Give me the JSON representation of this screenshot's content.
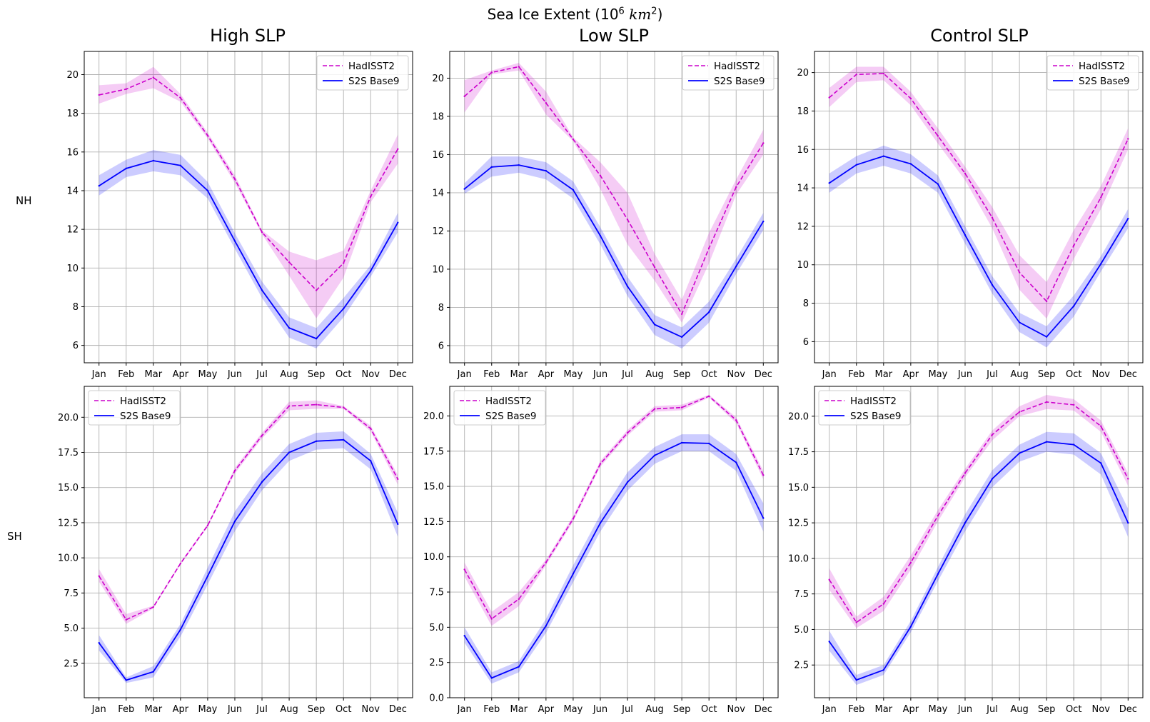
{
  "figure": {
    "title_prefix": "Sea Ice Extent (10",
    "title_exp": "6",
    "title_unit": "km",
    "title_unit_exp": "2",
    "title_suffix": ")",
    "col_titles": [
      "High SLP",
      "Low SLP",
      "Control SLP"
    ],
    "row_labels": [
      "NH",
      "SH"
    ]
  },
  "colors": {
    "hadisst": "#cc00cc",
    "s2s": "#0000ff",
    "grid": "#b0b0b0"
  },
  "chart_data": [
    {
      "type": "line",
      "panel": "High SLP / NH",
      "title": "High SLP",
      "row": "NH",
      "categories": [
        "Jan",
        "Feb",
        "Mar",
        "Apr",
        "May",
        "Jun",
        "Jul",
        "Aug",
        "Sep",
        "Oct",
        "Nov",
        "Dec"
      ],
      "ylim": [
        5.1,
        21.2
      ],
      "yticks": [
        6,
        8,
        10,
        12,
        14,
        16,
        18,
        20
      ],
      "ytick_labels": [
        "6",
        "8",
        "10",
        "12",
        "14",
        "16",
        "18",
        "20"
      ],
      "grid": true,
      "legend": "upper right",
      "series": [
        {
          "name": "HadISST2",
          "style": "dashed",
          "values": [
            18.95,
            19.25,
            19.85,
            18.8,
            16.85,
            14.6,
            11.85,
            10.3,
            8.85,
            10.25,
            13.7,
            16.15
          ],
          "lower": [
            18.5,
            19.0,
            19.3,
            18.6,
            16.7,
            14.4,
            11.75,
            9.6,
            7.4,
            9.5,
            13.4,
            15.4
          ],
          "upper": [
            19.45,
            19.55,
            20.4,
            19.0,
            17.0,
            14.8,
            11.95,
            10.85,
            10.4,
            10.9,
            14.0,
            16.9
          ]
        },
        {
          "name": "S2S Base9",
          "style": "solid",
          "values": [
            14.25,
            15.15,
            15.55,
            15.3,
            14.0,
            11.4,
            8.85,
            6.9,
            6.35,
            7.9,
            9.85,
            12.35
          ],
          "lower": [
            13.75,
            14.7,
            15.0,
            14.8,
            13.6,
            11.0,
            8.45,
            6.4,
            5.85,
            7.45,
            9.55,
            11.85
          ],
          "upper": [
            14.8,
            15.6,
            16.1,
            15.85,
            14.45,
            11.8,
            9.3,
            7.45,
            6.9,
            8.45,
            10.15,
            12.85
          ]
        }
      ]
    },
    {
      "type": "line",
      "panel": "Low SLP / NH",
      "title": "Low SLP",
      "row": "NH",
      "categories": [
        "Jan",
        "Feb",
        "Mar",
        "Apr",
        "May",
        "Jun",
        "Jul",
        "Aug",
        "Sep",
        "Oct",
        "Nov",
        "Dec"
      ],
      "ylim": [
        5.1,
        21.4
      ],
      "yticks": [
        6,
        8,
        10,
        12,
        14,
        16,
        18,
        20
      ],
      "ytick_labels": [
        "6",
        "8",
        "10",
        "12",
        "14",
        "16",
        "18",
        "20"
      ],
      "grid": true,
      "legend": "upper right",
      "series": [
        {
          "name": "HadISST2",
          "style": "dashed",
          "values": [
            19.05,
            20.3,
            20.6,
            18.7,
            16.8,
            14.9,
            12.6,
            10.1,
            7.65,
            11.1,
            14.3,
            16.6
          ],
          "lower": [
            18.2,
            20.2,
            20.4,
            18.1,
            16.7,
            14.2,
            11.3,
            9.4,
            7.2,
            10.3,
            13.9,
            16.0
          ],
          "upper": [
            19.9,
            20.4,
            20.8,
            19.3,
            16.9,
            15.6,
            14.0,
            10.8,
            8.4,
            11.9,
            14.7,
            17.3
          ]
        },
        {
          "name": "S2S Base9",
          "style": "solid",
          "values": [
            14.2,
            15.35,
            15.45,
            15.15,
            14.15,
            11.75,
            9.1,
            7.1,
            6.45,
            7.75,
            10.15,
            12.5
          ],
          "lower": [
            13.95,
            14.85,
            15.05,
            14.7,
            13.7,
            11.3,
            8.6,
            6.55,
            5.85,
            7.2,
            9.75,
            12.05
          ],
          "upper": [
            14.5,
            15.9,
            15.9,
            15.6,
            14.6,
            12.2,
            9.6,
            7.6,
            6.95,
            8.3,
            10.55,
            12.95
          ]
        }
      ]
    },
    {
      "type": "line",
      "panel": "Control SLP / NH",
      "title": "Control SLP",
      "row": "NH",
      "categories": [
        "Jan",
        "Feb",
        "Mar",
        "Apr",
        "May",
        "Jun",
        "Jul",
        "Aug",
        "Sep",
        "Oct",
        "Nov",
        "Dec"
      ],
      "ylim": [
        4.9,
        21.1
      ],
      "yticks": [
        6,
        8,
        10,
        12,
        14,
        16,
        18,
        20
      ],
      "ytick_labels": [
        "6",
        "8",
        "10",
        "12",
        "14",
        "16",
        "18",
        "20"
      ],
      "grid": true,
      "legend": "upper right",
      "series": [
        {
          "name": "HadISST2",
          "style": "dashed",
          "values": [
            18.7,
            19.9,
            19.95,
            18.65,
            16.7,
            14.75,
            12.45,
            9.6,
            8.1,
            11.0,
            13.5,
            16.55
          ],
          "lower": [
            18.2,
            19.5,
            19.6,
            18.3,
            16.3,
            14.4,
            11.9,
            8.7,
            7.2,
            10.3,
            12.9,
            16.0
          ],
          "upper": [
            19.2,
            20.3,
            20.3,
            19.0,
            17.1,
            15.1,
            13.0,
            10.5,
            9.1,
            11.8,
            14.1,
            17.1
          ]
        },
        {
          "name": "S2S Base9",
          "style": "solid",
          "values": [
            14.25,
            15.2,
            15.65,
            15.25,
            14.2,
            11.55,
            8.95,
            7.0,
            6.25,
            7.85,
            10.05,
            12.4
          ],
          "lower": [
            13.75,
            14.75,
            15.15,
            14.75,
            13.75,
            11.1,
            8.5,
            6.5,
            5.7,
            7.3,
            9.65,
            11.9
          ],
          "upper": [
            14.75,
            15.65,
            16.2,
            15.75,
            14.65,
            12.0,
            9.4,
            7.5,
            6.8,
            8.4,
            10.45,
            12.9
          ]
        }
      ]
    },
    {
      "type": "line",
      "panel": "High SLP / SH",
      "title": "",
      "row": "SH",
      "categories": [
        "Jan",
        "Feb",
        "Mar",
        "Apr",
        "May",
        "Jun",
        "Jul",
        "Aug",
        "Sep",
        "Oct",
        "Nov",
        "Dec"
      ],
      "ylim": [
        0.05,
        22.2
      ],
      "yticks": [
        2.5,
        5.0,
        7.5,
        10.0,
        12.5,
        15.0,
        17.5,
        20.0
      ],
      "ytick_labels": [
        "2.5",
        "5.0",
        "7.5",
        "10.0",
        "12.5",
        "15.0",
        "17.5",
        "20.0"
      ],
      "grid": true,
      "legend": "upper left",
      "series": [
        {
          "name": "HadISST2",
          "style": "dashed",
          "values": [
            8.7,
            5.6,
            6.5,
            9.6,
            12.3,
            16.2,
            18.7,
            20.8,
            20.9,
            20.7,
            19.2,
            15.6
          ],
          "lower": [
            8.3,
            5.3,
            6.4,
            9.5,
            12.2,
            16.0,
            18.5,
            20.5,
            20.6,
            20.6,
            19.0,
            15.2
          ],
          "upper": [
            9.2,
            6.0,
            6.6,
            9.7,
            12.4,
            16.4,
            18.9,
            21.1,
            21.2,
            20.8,
            19.4,
            15.9
          ]
        },
        {
          "name": "S2S Base9",
          "style": "solid",
          "values": [
            3.95,
            1.3,
            1.9,
            4.9,
            8.7,
            12.6,
            15.4,
            17.5,
            18.3,
            18.4,
            16.9,
            12.4
          ],
          "lower": [
            3.4,
            1.1,
            1.5,
            4.4,
            8.1,
            11.9,
            14.8,
            16.9,
            17.7,
            17.8,
            16.3,
            11.5
          ],
          "upper": [
            4.5,
            1.5,
            2.3,
            5.3,
            9.3,
            13.3,
            16.0,
            18.1,
            18.9,
            19.0,
            17.4,
            13.2
          ]
        }
      ]
    },
    {
      "type": "line",
      "panel": "Low SLP / SH",
      "title": "",
      "row": "SH",
      "categories": [
        "Jan",
        "Feb",
        "Mar",
        "Apr",
        "May",
        "Jun",
        "Jul",
        "Aug",
        "Sep",
        "Oct",
        "Nov",
        "Dec"
      ],
      "ylim": [
        0.0,
        22.1
      ],
      "yticks": [
        0.0,
        2.5,
        5.0,
        7.5,
        10.0,
        12.5,
        15.0,
        17.5,
        20.0
      ],
      "ytick_labels": [
        "0.0",
        "2.5",
        "5.0",
        "7.5",
        "10.0",
        "12.5",
        "15.0",
        "17.5",
        "20.0"
      ],
      "grid": true,
      "legend": "upper left",
      "series": [
        {
          "name": "HadISST2",
          "style": "dashed",
          "values": [
            9.1,
            5.6,
            7.0,
            9.6,
            12.7,
            16.6,
            18.8,
            20.5,
            20.6,
            21.4,
            19.7,
            15.8
          ],
          "lower": [
            8.6,
            5.1,
            6.5,
            9.4,
            12.5,
            16.4,
            18.6,
            20.3,
            20.4,
            21.3,
            19.5,
            15.5
          ],
          "upper": [
            9.6,
            6.1,
            7.5,
            9.8,
            12.9,
            16.8,
            19.0,
            20.7,
            20.8,
            21.5,
            19.9,
            16.1
          ]
        },
        {
          "name": "S2S Base9",
          "style": "solid",
          "values": [
            4.4,
            1.4,
            2.2,
            5.1,
            8.8,
            12.4,
            15.3,
            17.2,
            18.1,
            18.05,
            16.7,
            12.75
          ],
          "lower": [
            3.9,
            1.0,
            1.8,
            4.6,
            8.2,
            11.8,
            14.7,
            16.6,
            17.5,
            17.5,
            16.1,
            11.8
          ],
          "upper": [
            5.0,
            1.8,
            2.6,
            5.6,
            9.4,
            13.0,
            16.0,
            17.8,
            18.7,
            18.7,
            17.3,
            13.8
          ]
        }
      ]
    },
    {
      "type": "line",
      "panel": "Control SLP / SH",
      "title": "",
      "row": "SH",
      "categories": [
        "Jan",
        "Feb",
        "Mar",
        "Apr",
        "May",
        "Jun",
        "Jul",
        "Aug",
        "Sep",
        "Oct",
        "Nov",
        "Dec"
      ],
      "ylim": [
        0.2,
        22.1
      ],
      "yticks": [
        2.5,
        5.0,
        7.5,
        10.0,
        12.5,
        15.0,
        17.5,
        20.0
      ],
      "ytick_labels": [
        "2.5",
        "5.0",
        "7.5",
        "10.0",
        "12.5",
        "15.0",
        "17.5",
        "20.0"
      ],
      "grid": true,
      "legend": "upper left",
      "series": [
        {
          "name": "HadISST2",
          "style": "dashed",
          "values": [
            8.5,
            5.5,
            6.8,
            9.7,
            13.0,
            16.0,
            18.7,
            20.3,
            21.0,
            20.8,
            19.3,
            15.6
          ],
          "lower": [
            7.8,
            5.1,
            6.3,
            9.2,
            12.6,
            15.7,
            18.3,
            20.0,
            20.5,
            20.4,
            18.9,
            15.1
          ],
          "upper": [
            9.3,
            5.9,
            7.3,
            10.2,
            13.4,
            16.3,
            19.0,
            20.7,
            21.5,
            21.2,
            19.7,
            16.0
          ]
        },
        {
          "name": "S2S Base9",
          "style": "solid",
          "values": [
            4.15,
            1.45,
            2.15,
            5.2,
            8.9,
            12.5,
            15.6,
            17.4,
            18.2,
            18.0,
            16.7,
            12.5
          ],
          "lower": [
            3.5,
            1.1,
            1.8,
            4.8,
            8.4,
            11.9,
            15.0,
            16.8,
            17.5,
            17.3,
            15.9,
            11.5
          ],
          "upper": [
            4.9,
            1.8,
            2.5,
            5.6,
            9.4,
            13.1,
            16.2,
            18.0,
            18.9,
            18.8,
            17.4,
            13.5
          ]
        }
      ]
    }
  ]
}
